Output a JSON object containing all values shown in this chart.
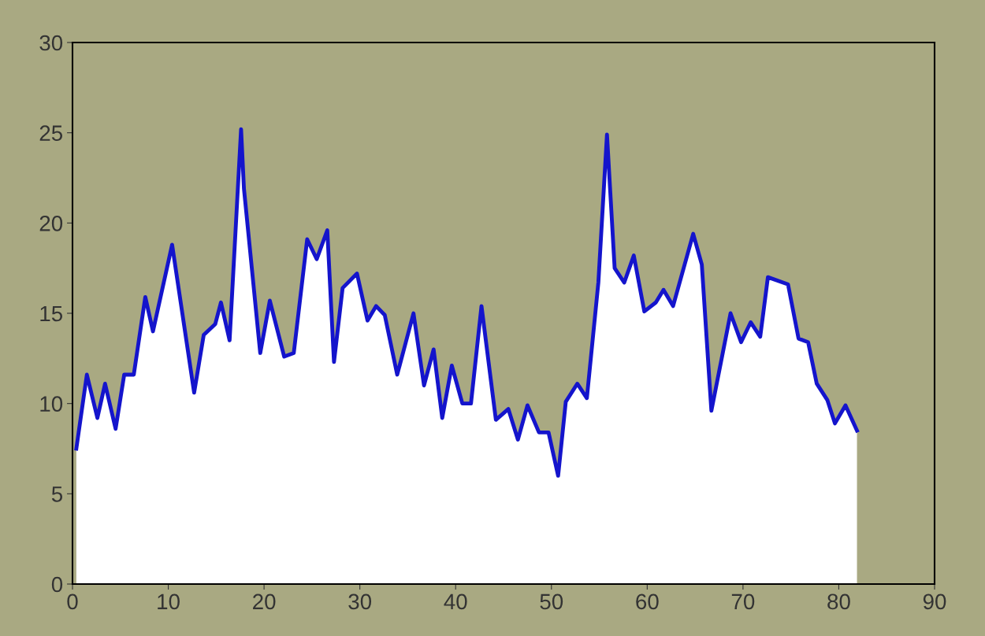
{
  "chart_data": {
    "type": "area",
    "xlim": [
      0,
      90
    ],
    "ylim": [
      0,
      30
    ],
    "xticks": [
      0,
      10,
      20,
      30,
      40,
      50,
      60,
      70,
      80,
      90
    ],
    "yticks": [
      0,
      5,
      10,
      15,
      20,
      25,
      30
    ],
    "grid": false,
    "series": [
      {
        "color": "#1414cc",
        "x": [
          0.4,
          1.5,
          2.6,
          3.4,
          4.5,
          5.4,
          6.4,
          7.6,
          8.4,
          10.4,
          12.7,
          13.7,
          14.9,
          15.5,
          16.4,
          17.6,
          17.9,
          19.6,
          20.6,
          22.1,
          23.1,
          24.5,
          25.5,
          26.6,
          27.3,
          28.2,
          29.7,
          30.8,
          31.7,
          32.6,
          33.9,
          35.6,
          36.7,
          37.7,
          38.6,
          39.6,
          40.7,
          41.6,
          42.7,
          44.2,
          45.5,
          46.5,
          47.5,
          48.7,
          49.7,
          50.7,
          51.5,
          52.7,
          53.7,
          54.9,
          55.8,
          56.6,
          57.6,
          58.6,
          59.7,
          60.9,
          61.7,
          62.7,
          64.8,
          65.7,
          66.7,
          67.7,
          68.7,
          69.8,
          70.8,
          71.8,
          72.6,
          74.7,
          75.8,
          76.8,
          77.7,
          78.8,
          79.6,
          80.7,
          81.9
        ],
        "values": [
          7.5,
          11.6,
          9.2,
          11.1,
          8.6,
          11.6,
          11.6,
          15.9,
          14.0,
          18.8,
          10.6,
          13.8,
          14.4,
          15.6,
          13.5,
          25.2,
          21.9,
          12.8,
          15.7,
          12.6,
          12.8,
          19.1,
          18.0,
          19.6,
          12.3,
          16.4,
          17.2,
          14.6,
          15.4,
          14.9,
          11.6,
          15.0,
          11.0,
          13.0,
          9.2,
          12.1,
          10.0,
          10.0,
          15.4,
          9.1,
          9.7,
          8.0,
          9.9,
          8.4,
          8.4,
          6.0,
          10.1,
          11.1,
          10.3,
          16.7,
          24.9,
          17.5,
          16.7,
          18.2,
          15.1,
          15.6,
          16.3,
          15.4,
          19.4,
          17.7,
          9.6,
          12.3,
          15.0,
          13.4,
          14.5,
          13.7,
          17.0,
          16.6,
          13.6,
          13.4,
          11.1,
          10.2,
          8.9,
          9.9,
          8.5
        ]
      }
    ]
  }
}
